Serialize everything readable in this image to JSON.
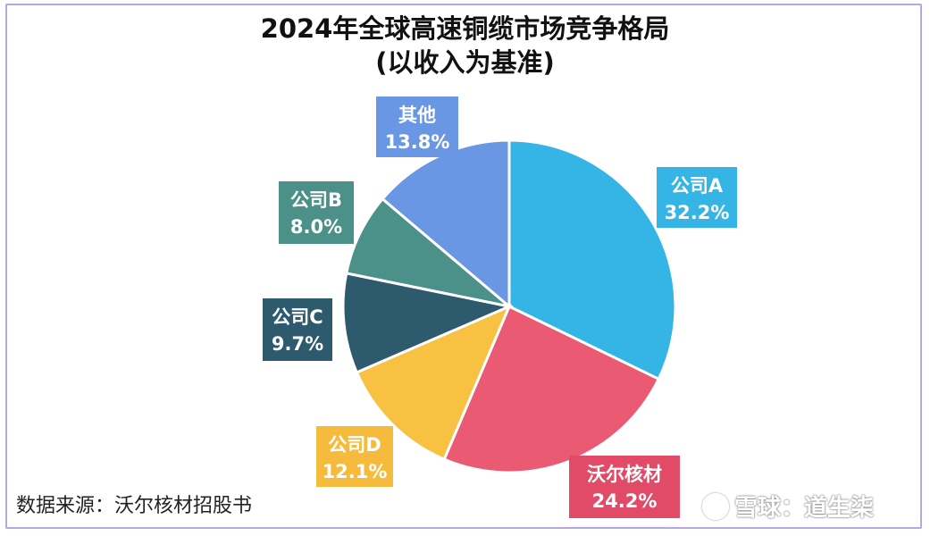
{
  "chart_data": {
    "type": "pie",
    "title": "2024年全球高速铜缆市场竞争格局",
    "subtitle": "(以收入为基准)",
    "slices": [
      {
        "label": "公司A",
        "value": 32.2,
        "value_label": "32.2%",
        "color": "#35b5e5",
        "label_color": "#35b5e5"
      },
      {
        "label": "沃尔核材",
        "value": 24.2,
        "value_label": "24.2%",
        "color": "#ea5a73",
        "label_color": "#e24b67"
      },
      {
        "label": "公司D",
        "value": 12.1,
        "value_label": "12.1%",
        "color": "#f8c142",
        "label_color": "#f6bb3c"
      },
      {
        "label": "公司C",
        "value": 9.7,
        "value_label": "9.7%",
        "color": "#2d5a6c",
        "label_color": "#2d5a6c"
      },
      {
        "label": "公司B",
        "value": 8.0,
        "value_label": "8.0%",
        "color": "#4b9089",
        "label_color": "#4b9089"
      },
      {
        "label": "其他",
        "value": 13.8,
        "value_label": "13.8%",
        "color": "#6a97e3",
        "label_color": "#6a97e3"
      }
    ],
    "start": "12 o'clock",
    "direction": "clockwise"
  },
  "source": "数据来源：沃尔核材招股书",
  "watermark": "雪球：道生柒"
}
